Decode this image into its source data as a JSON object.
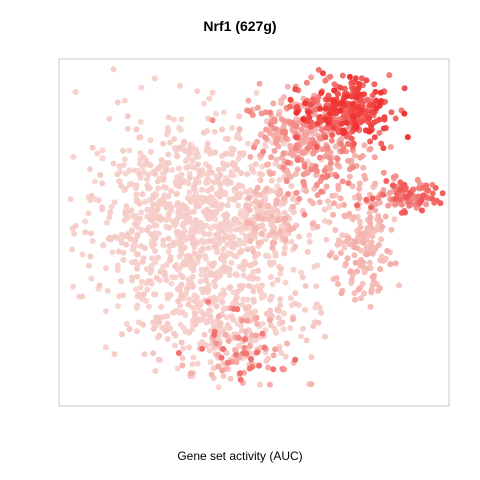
{
  "chart_data": {
    "type": "scatter",
    "title": "Nrf1 (627g)",
    "xlabel": "Gene set activity (AUC)",
    "ylabel": "",
    "axes_visible": false,
    "grid": false,
    "legend": "none",
    "colors": {
      "low": "#f7d8d4",
      "mid": "#f4a7a2",
      "high": "#f03030",
      "panel_border": "#c8c8c8",
      "background": "#ffffff"
    },
    "point_clusters": [
      {
        "cx": -1.0,
        "cy": 0.1,
        "sx": 0.55,
        "sy": 0.65,
        "n": 520,
        "activity": [
          0.02,
          0.14
        ]
      },
      {
        "cx": -0.15,
        "cy": 0.05,
        "sx": 0.55,
        "sy": 0.55,
        "n": 420,
        "activity": [
          0.02,
          0.14
        ]
      },
      {
        "cx": -0.3,
        "cy": -1.1,
        "sx": 0.55,
        "sy": 0.38,
        "n": 300,
        "activity": [
          0.03,
          0.18
        ]
      },
      {
        "cx": 0.0,
        "cy": -1.55,
        "sx": 0.3,
        "sy": 0.2,
        "n": 80,
        "activity": [
          0.3,
          0.75
        ]
      },
      {
        "cx": 0.55,
        "cy": 1.2,
        "sx": 0.32,
        "sy": 0.22,
        "n": 150,
        "activity": [
          0.25,
          0.65
        ]
      },
      {
        "cx": 1.25,
        "cy": 1.4,
        "sx": 0.28,
        "sy": 0.18,
        "n": 280,
        "activity": [
          0.65,
          1.0
        ]
      },
      {
        "cx": 0.95,
        "cy": 0.8,
        "sx": 0.35,
        "sy": 0.25,
        "n": 160,
        "activity": [
          0.3,
          0.7
        ]
      },
      {
        "cx": 1.45,
        "cy": -0.2,
        "sx": 0.2,
        "sy": 0.35,
        "n": 170,
        "activity": [
          0.15,
          0.45
        ]
      },
      {
        "cx": 2.05,
        "cy": 0.35,
        "sx": 0.22,
        "sy": 0.1,
        "n": 110,
        "activity": [
          0.5,
          0.85
        ]
      },
      {
        "cx": 0.4,
        "cy": 0.1,
        "sx": 0.22,
        "sy": 0.3,
        "n": 110,
        "activity": [
          0.1,
          0.4
        ]
      }
    ],
    "xlim": [
      -2.2,
      2.4
    ],
    "ylim": [
      -2.1,
      1.9
    ]
  }
}
